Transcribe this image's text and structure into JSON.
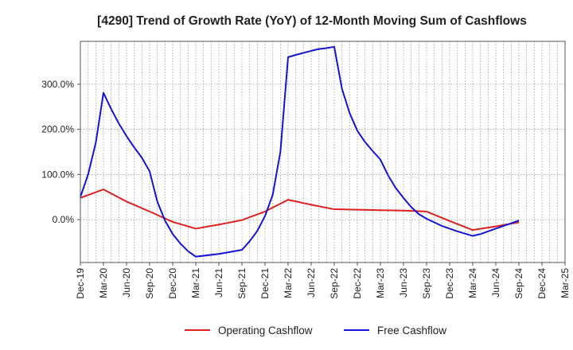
{
  "chart_data": {
    "type": "line",
    "title": "[4290]  Trend of Growth Rate (YoY) of 12-Month Moving Sum of Cashflows",
    "xlabel": "",
    "ylabel": "",
    "x_ticks": [
      "Dec-19",
      "Mar-20",
      "Jun-20",
      "Sep-20",
      "Dec-20",
      "Mar-21",
      "Jun-21",
      "Sep-21",
      "Dec-21",
      "Mar-22",
      "Jun-22",
      "Sep-22",
      "Dec-22",
      "Mar-23",
      "Jun-23",
      "Sep-23",
      "Dec-23",
      "Mar-24",
      "Jun-24",
      "Sep-24",
      "Dec-24",
      "Mar-25"
    ],
    "y_ticks": [
      {
        "value": 300,
        "label": "300.0%"
      },
      {
        "value": 200,
        "label": "200.0%"
      },
      {
        "value": 100,
        "label": "100.0%"
      },
      {
        "value": 0,
        "label": "0.0%"
      }
    ],
    "ylim": [
      -95,
      395
    ],
    "grid": "dotted-both",
    "legend_position": "bottom",
    "series": [
      {
        "name": "Operating Cashflow",
        "color": "#e02020",
        "points": [
          [
            0,
            48
          ],
          [
            3,
            67
          ],
          [
            6,
            40
          ],
          [
            9,
            18
          ],
          [
            12,
            -5
          ],
          [
            15,
            -20
          ],
          [
            18,
            -11
          ],
          [
            21,
            -1
          ],
          [
            24,
            18
          ],
          [
            27,
            44
          ],
          [
            30,
            33
          ],
          [
            33,
            23
          ],
          [
            36,
            22
          ],
          [
            39,
            21
          ],
          [
            42,
            20
          ],
          [
            45,
            18
          ],
          [
            48,
            -3
          ],
          [
            51,
            -23
          ],
          [
            54,
            -15
          ],
          [
            57,
            -6
          ]
        ]
      },
      {
        "name": "Free Cashflow",
        "color": "#1414d8",
        "points": [
          [
            0,
            50
          ],
          [
            1,
            100
          ],
          [
            2,
            170
          ],
          [
            3,
            281
          ],
          [
            4,
            245
          ],
          [
            5,
            213
          ],
          [
            6,
            185
          ],
          [
            7,
            160
          ],
          [
            8,
            137
          ],
          [
            9,
            107
          ],
          [
            10,
            40
          ],
          [
            11,
            -2
          ],
          [
            12,
            -32
          ],
          [
            13,
            -53
          ],
          [
            14,
            -70
          ],
          [
            15,
            -82
          ],
          [
            18,
            -76
          ],
          [
            21,
            -67
          ],
          [
            22,
            -48
          ],
          [
            23,
            -25
          ],
          [
            24,
            8
          ],
          [
            25,
            55
          ],
          [
            26,
            150
          ],
          [
            27,
            360
          ],
          [
            28,
            365
          ],
          [
            30,
            374
          ],
          [
            31,
            378
          ],
          [
            32,
            380
          ],
          [
            33,
            383
          ],
          [
            34,
            290
          ],
          [
            35,
            236
          ],
          [
            36,
            197
          ],
          [
            37,
            172
          ],
          [
            38,
            152
          ],
          [
            39,
            133
          ],
          [
            40,
            98
          ],
          [
            41,
            70
          ],
          [
            42,
            48
          ],
          [
            43,
            28
          ],
          [
            44,
            12
          ],
          [
            45,
            2
          ],
          [
            46,
            -6
          ],
          [
            47,
            -14
          ],
          [
            48,
            -20
          ],
          [
            49,
            -26
          ],
          [
            50,
            -31
          ],
          [
            51,
            -36
          ],
          [
            52,
            -32
          ],
          [
            53,
            -26
          ],
          [
            54,
            -20
          ],
          [
            55,
            -14
          ],
          [
            56,
            -8
          ],
          [
            57,
            -2
          ]
        ]
      }
    ]
  }
}
